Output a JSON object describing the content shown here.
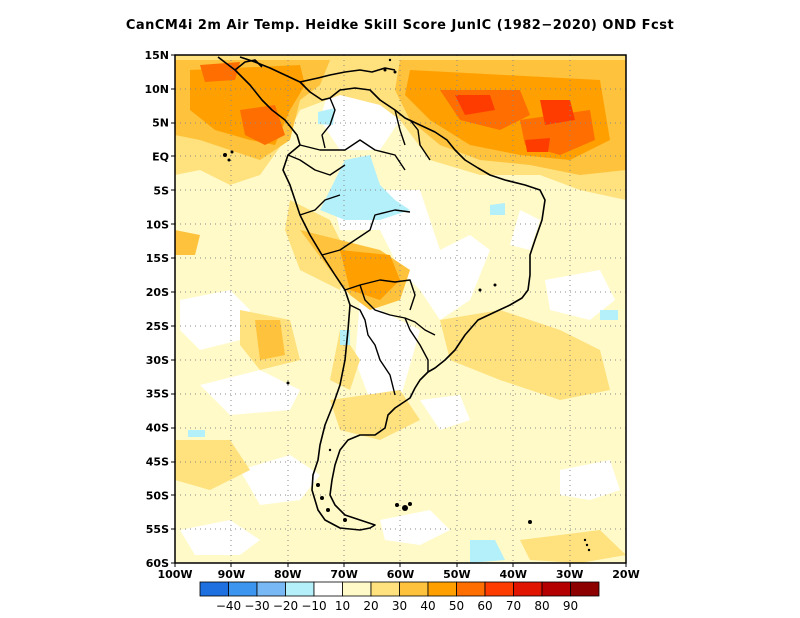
{
  "title": "CanCM4i  2m Air Temp. Heidke Skill Score JunIC (1982−2020) OND Fcst",
  "map": {
    "lat_range": [
      -60,
      15
    ],
    "lon_range": [
      -100,
      -20
    ],
    "grid": "dotted",
    "lat_ticks": [
      {
        "value": 15,
        "label": "15N"
      },
      {
        "value": 10,
        "label": "10N"
      },
      {
        "value": 5,
        "label": "5N"
      },
      {
        "value": 0,
        "label": "EQ"
      },
      {
        "value": -5,
        "label": "5S"
      },
      {
        "value": -10,
        "label": "10S"
      },
      {
        "value": -15,
        "label": "15S"
      },
      {
        "value": -20,
        "label": "20S"
      },
      {
        "value": -25,
        "label": "25S"
      },
      {
        "value": -30,
        "label": "30S"
      },
      {
        "value": -35,
        "label": "35S"
      },
      {
        "value": -40,
        "label": "40S"
      },
      {
        "value": -45,
        "label": "45S"
      },
      {
        "value": -50,
        "label": "50S"
      },
      {
        "value": -55,
        "label": "55S"
      },
      {
        "value": -60,
        "label": "60S"
      }
    ],
    "lon_ticks": [
      {
        "value": -100,
        "label": "100W"
      },
      {
        "value": -90,
        "label": "90W"
      },
      {
        "value": -80,
        "label": "80W"
      },
      {
        "value": -70,
        "label": "70W"
      },
      {
        "value": -60,
        "label": "60W"
      },
      {
        "value": -50,
        "label": "50W"
      },
      {
        "value": -40,
        "label": "40W"
      },
      {
        "value": -30,
        "label": "30W"
      },
      {
        "value": -20,
        "label": "20W"
      }
    ]
  },
  "colorbar": {
    "labels": [
      "−40",
      "−30",
      "−20",
      "−10",
      "10",
      "20",
      "30",
      "40",
      "50",
      "60",
      "70",
      "80",
      "90"
    ],
    "colors": [
      "#1e6fe0",
      "#3c96f0",
      "#78b9f5",
      "#b4f0fa",
      "#ffffff",
      "#fffac8",
      "#ffe17d",
      "#ffc23c",
      "#ffa000",
      "#ff6e00",
      "#ff3c00",
      "#e11400",
      "#b40000",
      "#8c0000"
    ]
  }
}
